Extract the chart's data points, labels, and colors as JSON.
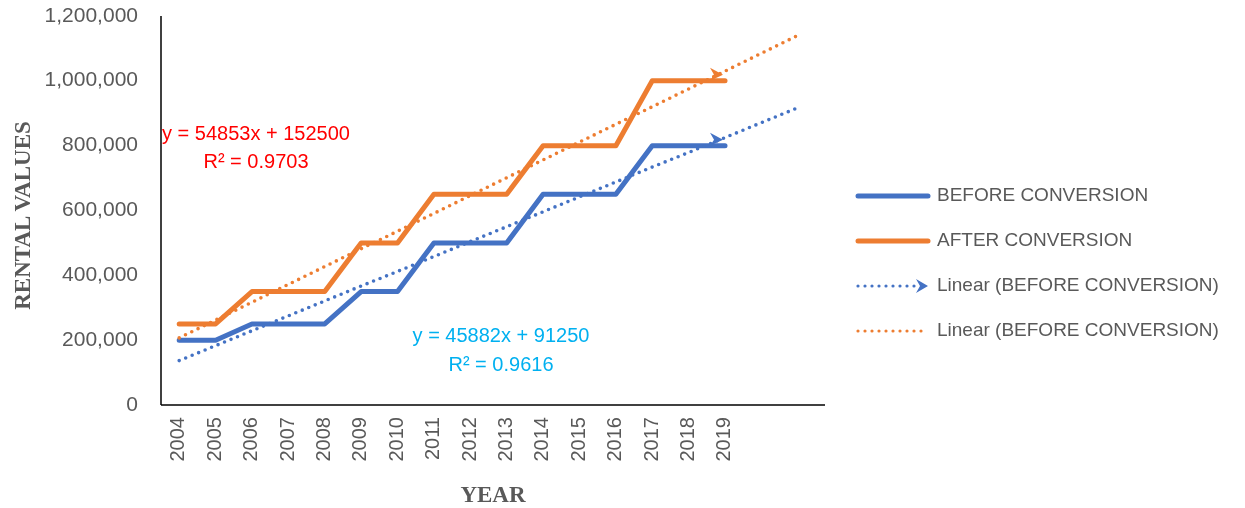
{
  "chart_data": {
    "type": "line",
    "xlabel": "YEAR",
    "ylabel": "RENTAL VALUES",
    "categories": [
      "2004",
      "2005",
      "2006",
      "2007",
      "2008",
      "2009",
      "2010",
      "2011",
      "2012",
      "2013",
      "2014",
      "2015",
      "2016",
      "2017",
      "2018",
      "2019",
      null,
      null
    ],
    "ylim": [
      0,
      1200000
    ],
    "yticks": [
      0,
      {
        "value": 200000,
        "label": "200,000"
      },
      {
        "value": 400000,
        "label": "400,000"
      },
      {
        "value": 600000,
        "label": "600,000"
      },
      {
        "value": 800000,
        "label": "800,000"
      },
      {
        "value": 1000000,
        "label": "1,000,000"
      },
      {
        "value": 1200000,
        "label": "1,200,000"
      }
    ],
    "legend": "right",
    "annotations": [
      "y = 54853x + 152500",
      "R² = 0.9703",
      "y = 45882x + 91250",
      "R² = 0.9616"
    ],
    "series": [
      {
        "name": "BEFORE CONVERSION",
        "color": "#4472c4",
        "values": [
          200000,
          200000,
          250000,
          250000,
          250000,
          350000,
          350000,
          500000,
          500000,
          500000,
          650000,
          650000,
          650000,
          800000,
          800000,
          800000,
          null,
          null
        ]
      },
      {
        "name": "AFTER CONVERSION",
        "color": "#ed7d31",
        "values": [
          250000,
          250000,
          350000,
          350000,
          350000,
          500000,
          500000,
          650000,
          650000,
          650000,
          800000,
          800000,
          800000,
          1000000,
          1000000,
          1000000,
          null,
          null
        ]
      },
      {
        "name": "Linear (BEFORE CONVERSION)",
        "color": "#4472c4",
        "line_style": "dotted",
        "values": [
          137000,
          183000,
          229000,
          275000,
          321000,
          367000,
          412000,
          458000,
          504000,
          550000,
          596000,
          642000,
          688000,
          734000,
          779000,
          825000,
          871000,
          917000
        ]
      },
      {
        "name": "Linear (BEFORE CONVERSION)",
        "color": "#ed7d31",
        "line_style": "dotted",
        "values": [
          207000,
          262000,
          317000,
          372000,
          427000,
          482000,
          536000,
          591000,
          646000,
          701000,
          756000,
          811000,
          866000,
          920000,
          975000,
          1030000,
          1085000,
          1140000
        ]
      }
    ]
  }
}
